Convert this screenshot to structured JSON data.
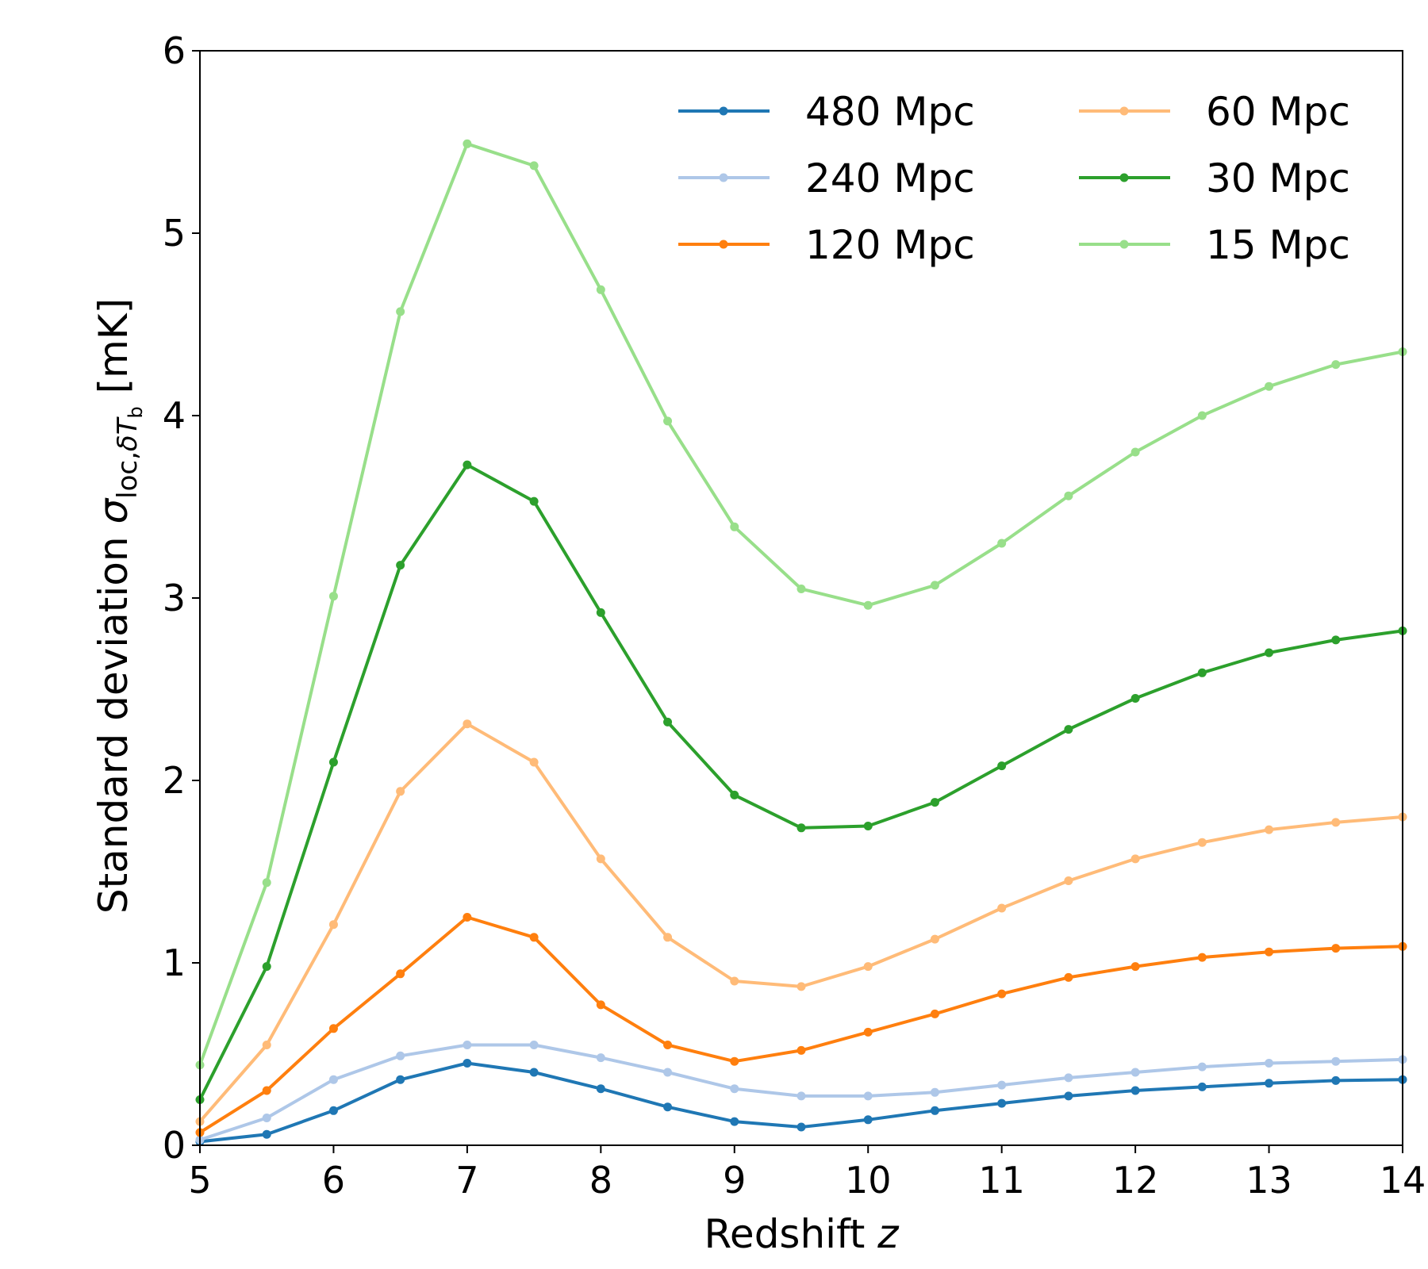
{
  "chart_data": {
    "type": "line",
    "title": "",
    "xlabel": "Redshift z",
    "xlabel_parts": [
      "Redshift ",
      "z"
    ],
    "ylabel": "Standard deviation σloc,δTb [mK]",
    "ylabel_parts": {
      "prefix": "Standard deviation ",
      "sigma": "σ",
      "sub_loc": "loc,",
      "sub_delta": "δ",
      "sub_T": "T",
      "sub_b": "b",
      "suffix": " [mK]"
    },
    "xlim": [
      5,
      14
    ],
    "ylim": [
      0,
      6
    ],
    "xticks": [
      5,
      6,
      7,
      8,
      9,
      10,
      11,
      12,
      13,
      14
    ],
    "yticks": [
      0,
      1,
      2,
      3,
      4,
      5,
      6
    ],
    "grid": false,
    "legend_position": "top-right",
    "legend_columns": 2,
    "x": [
      5,
      5.5,
      6,
      6.5,
      7,
      7.5,
      8,
      8.5,
      9,
      9.5,
      10,
      10.5,
      11,
      11.5,
      12,
      12.5,
      13,
      13.5,
      14
    ],
    "series": [
      {
        "name": "480 Mpc",
        "color": "#1f77b4",
        "values": [
          0.02,
          0.06,
          0.19,
          0.36,
          0.45,
          0.4,
          0.31,
          0.21,
          0.13,
          0.1,
          0.14,
          0.19,
          0.23,
          0.27,
          0.3,
          0.32,
          0.34,
          0.355,
          0.36
        ]
      },
      {
        "name": "240 Mpc",
        "color": "#aec7e8",
        "values": [
          0.03,
          0.15,
          0.36,
          0.49,
          0.55,
          0.55,
          0.48,
          0.4,
          0.31,
          0.27,
          0.27,
          0.29,
          0.33,
          0.37,
          0.4,
          0.43,
          0.45,
          0.46,
          0.47
        ]
      },
      {
        "name": "120 Mpc",
        "color": "#ff7f0e",
        "values": [
          0.07,
          0.3,
          0.64,
          0.94,
          1.25,
          1.14,
          0.77,
          0.55,
          0.46,
          0.52,
          0.62,
          0.72,
          0.83,
          0.92,
          0.98,
          1.03,
          1.06,
          1.08,
          1.09
        ]
      },
      {
        "name": "60 Mpc",
        "color": "#ffbb78",
        "values": [
          0.13,
          0.55,
          1.21,
          1.94,
          2.31,
          2.1,
          1.57,
          1.14,
          0.9,
          0.87,
          0.98,
          1.13,
          1.3,
          1.45,
          1.57,
          1.66,
          1.73,
          1.77,
          1.8
        ]
      },
      {
        "name": "30 Mpc",
        "color": "#2ca02c",
        "values": [
          0.25,
          0.98,
          2.1,
          3.18,
          3.73,
          3.53,
          2.92,
          2.32,
          1.92,
          1.74,
          1.75,
          1.88,
          2.08,
          2.28,
          2.45,
          2.59,
          2.7,
          2.77,
          2.82
        ]
      },
      {
        "name": "15 Mpc",
        "color": "#98df8a",
        "values": [
          0.44,
          1.44,
          3.01,
          4.57,
          5.49,
          5.37,
          4.69,
          3.97,
          3.39,
          3.05,
          2.96,
          3.07,
          3.3,
          3.56,
          3.8,
          4.0,
          4.16,
          4.28,
          4.35
        ]
      }
    ]
  }
}
